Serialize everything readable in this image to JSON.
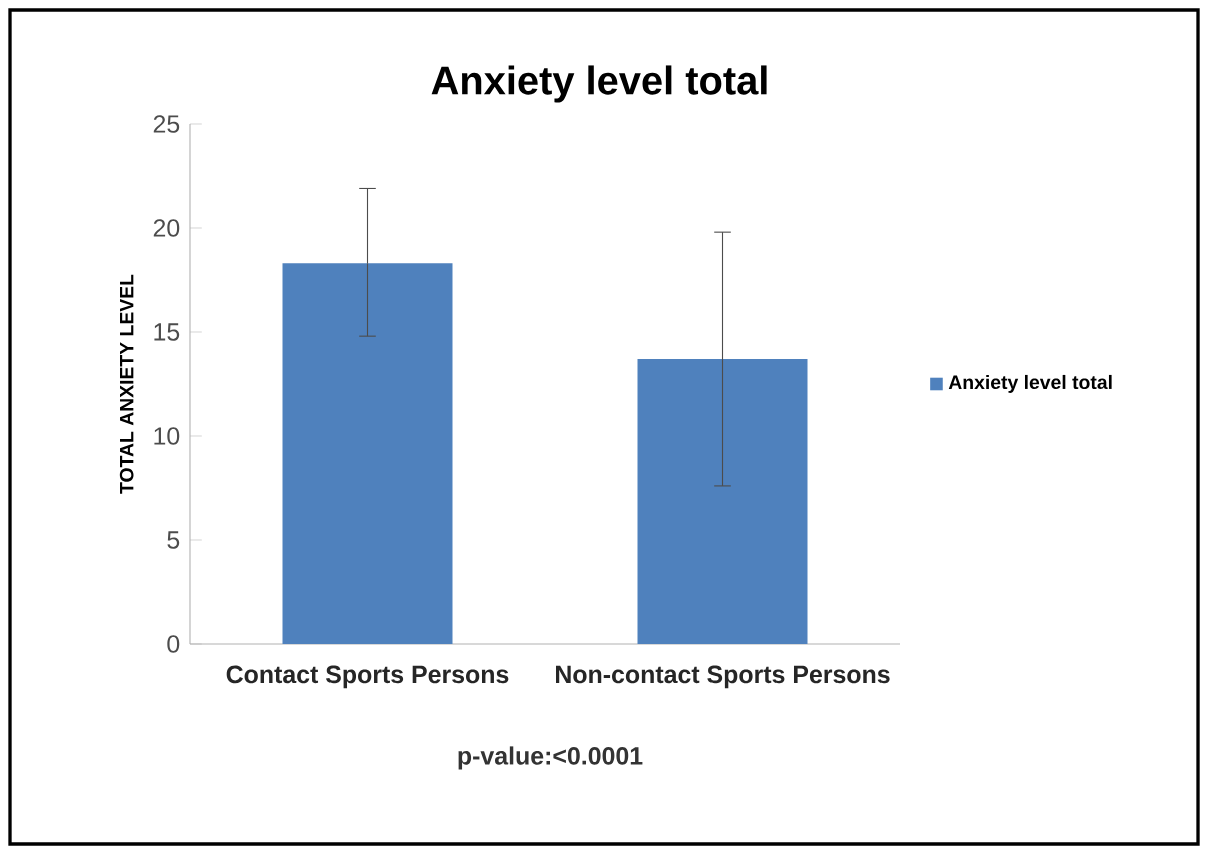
{
  "chart_data": {
    "type": "bar",
    "title": "Anxiety level total",
    "ylabel": "TOTAL ANXIETY LEVEL",
    "categories": [
      "Contact Sports Persons",
      "Non-contact Sports Persons"
    ],
    "series": [
      {
        "name": "Anxiety level total",
        "color": "#4f81bd",
        "values": [
          18.3,
          13.7
        ],
        "errors": [
          [
            14.8,
            21.9
          ],
          [
            7.6,
            19.8
          ]
        ]
      }
    ],
    "ylim": [
      0,
      25
    ],
    "yticks": [
      0,
      5,
      10,
      15,
      20,
      25
    ],
    "grid": false,
    "legend": "right",
    "annotations": [
      "p-value:<0.0001"
    ]
  }
}
